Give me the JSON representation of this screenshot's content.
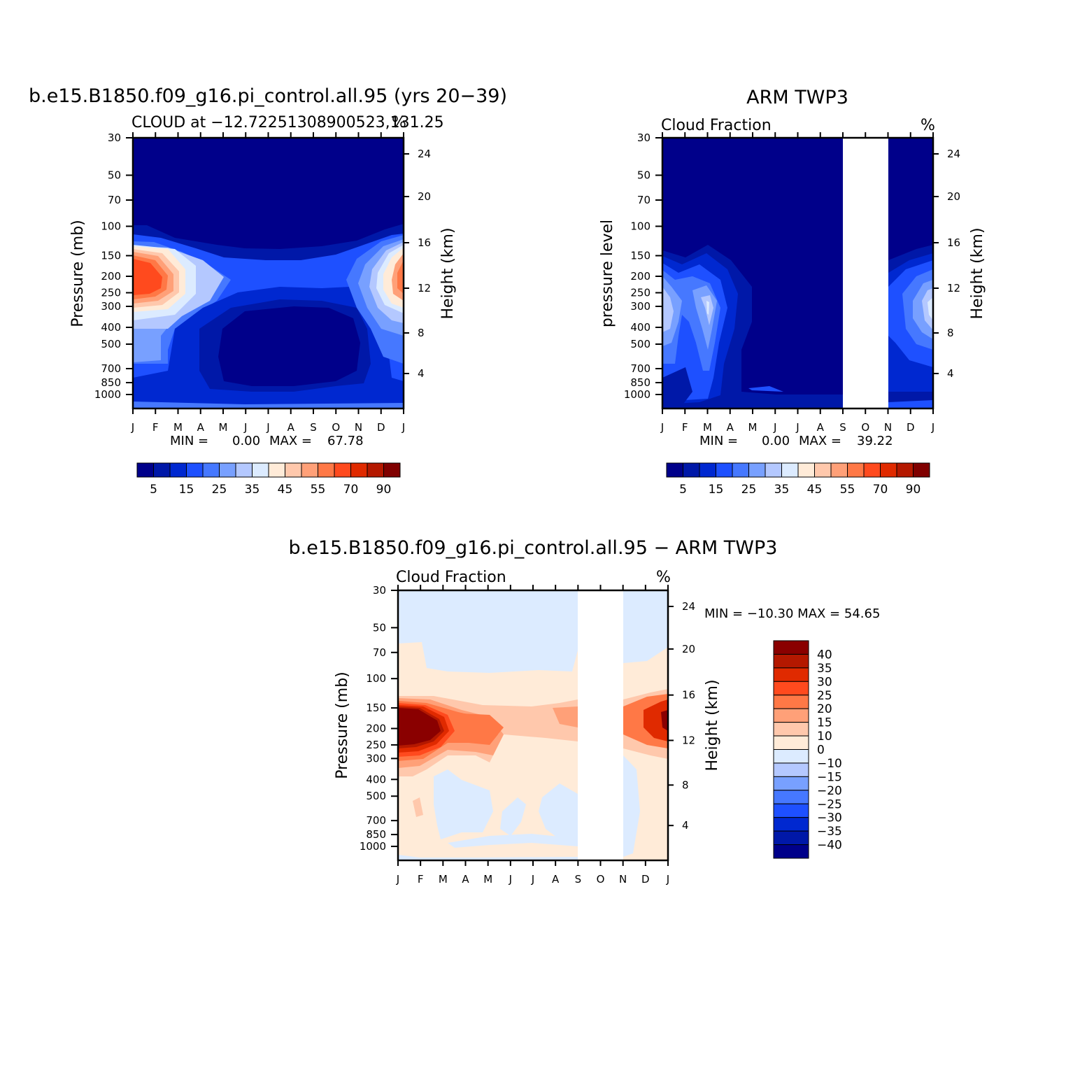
{
  "figure": {
    "top_left": {
      "title": "b.e15.B1850.f09_g16.pi_control.all.95 (yrs 20−39)",
      "subtitle_left": "CLOUD at −12.722513089005",
      "subtitle_left_tail": "23,131.25",
      "subtitle_right": "%",
      "ylabel_left": "Pressure (mb)",
      "ylabel_right": "Height (km)",
      "stats": {
        "min_label": "MIN =",
        "min_value": "0.00",
        "max_label": "MAX =",
        "max_value": "67.78"
      }
    },
    "top_right": {
      "title": "ARM TWP3",
      "subtitle_left": "Cloud Fraction",
      "subtitle_right": "%",
      "ylabel_left": "pressure level",
      "ylabel_right": "Height (km)",
      "stats": {
        "min_label": "MIN =",
        "min_value": "0.00",
        "max_label": "MAX =",
        "max_value": "39.22"
      }
    },
    "bottom": {
      "title": "b.e15.B1850.f09_g16.pi_control.all.95 − ARM TWP3",
      "subtitle_left": "Cloud Fraction",
      "subtitle_right": "%",
      "ylabel_left": "Pressure (mb)",
      "ylabel_right": "Height (km)",
      "stats_text": "MIN = −10.30 MAX =  54.65"
    }
  },
  "chart_data": [
    {
      "type": "heatmap",
      "title": "b.e15.B1850.f09_g16.pi_control.all.95 (yrs 20−39)",
      "subtitle": "CLOUD at −12.722513089005,131.25",
      "x_ticks": [
        "J",
        "F",
        "M",
        "A",
        "M",
        "J",
        "J",
        "A",
        "S",
        "O",
        "N",
        "D",
        "J"
      ],
      "y_ticks_pressure": [
        "30",
        "50",
        "70",
        "100",
        "150",
        "200",
        "250",
        "300",
        "400",
        "500",
        "700",
        "850",
        "1000"
      ],
      "y_ticks_height": [
        "24",
        "20",
        "16",
        "12",
        "8",
        "4"
      ],
      "ylim_pressure": [
        1000,
        30
      ],
      "min": 0.0,
      "max": 67.78,
      "colorbar_labels": [
        "5",
        "15",
        "25",
        "35",
        "45",
        "55",
        "70",
        "90"
      ],
      "colorbar_colors": [
        "#00008a",
        "#0018a8",
        "#0028d0",
        "#1e50ff",
        "#4678ff",
        "#78a0ff",
        "#b4c8ff",
        "#dcebff",
        "#ffebd8",
        "#ffc8ac",
        "#ffa078",
        "#ff7846",
        "#ff4a1e",
        "#e02a00",
        "#b41800",
        "#800000"
      ]
    },
    {
      "type": "heatmap",
      "title": "ARM TWP3",
      "subtitle": "Cloud Fraction",
      "units": "%",
      "x_ticks": [
        "J",
        "F",
        "M",
        "A",
        "M",
        "J",
        "J",
        "A",
        "S",
        "O",
        "N",
        "D",
        "J"
      ],
      "y_ticks_pressure": [
        "30",
        "50",
        "70",
        "100",
        "150",
        "200",
        "250",
        "300",
        "400",
        "500",
        "700",
        "850",
        "1000"
      ],
      "y_ticks_height": [
        "24",
        "20",
        "16",
        "12",
        "8",
        "4"
      ],
      "ylim_pressure": [
        1000,
        30
      ],
      "missing_months": [
        "S",
        "O"
      ],
      "min": 0.0,
      "max": 39.22,
      "colorbar_labels": [
        "5",
        "15",
        "25",
        "35",
        "45",
        "55",
        "70",
        "90"
      ]
    },
    {
      "type": "heatmap",
      "title": "b.e15.B1850.f09_g16.pi_control.all.95 − ARM TWP3",
      "subtitle": "Cloud Fraction",
      "units": "%",
      "x_ticks": [
        "J",
        "F",
        "M",
        "A",
        "M",
        "J",
        "J",
        "A",
        "S",
        "O",
        "N",
        "D",
        "J"
      ],
      "y_ticks_pressure": [
        "30",
        "50",
        "70",
        "100",
        "150",
        "200",
        "250",
        "300",
        "400",
        "500",
        "700",
        "850",
        "1000"
      ],
      "y_ticks_height": [
        "24",
        "20",
        "16",
        "12",
        "8",
        "4"
      ],
      "ylim_pressure": [
        1000,
        30
      ],
      "missing_months": [
        "S",
        "O"
      ],
      "min": -10.3,
      "max": 54.65,
      "colorbar_labels": [
        "40",
        "35",
        "30",
        "25",
        "20",
        "15",
        "10",
        "0",
        "−10",
        "−15",
        "−20",
        "−25",
        "−30",
        "−35",
        "−40"
      ],
      "colorbar_colors": [
        "#8a0000",
        "#b41800",
        "#e02a00",
        "#ff4a1e",
        "#ff7846",
        "#ffa078",
        "#ffc8ac",
        "#ffebd8",
        "#dcebff",
        "#b4c8ff",
        "#78a0ff",
        "#4678ff",
        "#1e50ff",
        "#0028d0",
        "#0018a8",
        "#00008a"
      ]
    }
  ]
}
